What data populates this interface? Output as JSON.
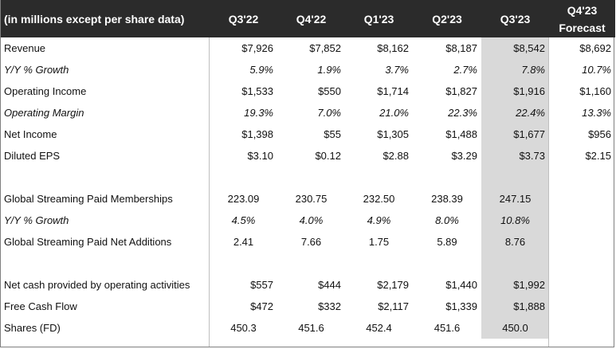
{
  "header": {
    "label": "(in millions except per share data)",
    "cols": [
      "Q3'22",
      "Q4'22",
      "Q1'23",
      "Q2'23",
      "Q3'23"
    ],
    "forecast_line1": "Q4'23",
    "forecast_line2": "Forecast"
  },
  "rows": [
    {
      "label": "Revenue",
      "italic": false,
      "values": [
        "$7,926",
        "$7,852",
        "$8,162",
        "$8,187",
        "$8,542",
        "$8,692"
      ]
    },
    {
      "label": "Y/Y % Growth",
      "italic": true,
      "values": [
        "5.9%",
        "1.9%",
        "3.7%",
        "2.7%",
        "7.8%",
        "10.7%"
      ]
    },
    {
      "label": "Operating Income",
      "italic": false,
      "values": [
        "$1,533",
        "$550",
        "$1,714",
        "$1,827",
        "$1,916",
        "$1,160"
      ]
    },
    {
      "label": "Operating Margin",
      "italic": true,
      "values": [
        "19.3%",
        "7.0%",
        "21.0%",
        "22.3%",
        "22.4%",
        "13.3%"
      ]
    },
    {
      "label": "Net Income",
      "italic": false,
      "values": [
        "$1,398",
        "$55",
        "$1,305",
        "$1,488",
        "$1,677",
        "$956"
      ]
    },
    {
      "label": "Diluted EPS",
      "italic": false,
      "values": [
        "$3.10",
        "$0.12",
        "$2.88",
        "$3.29",
        "$3.73",
        "$2.15"
      ]
    },
    {
      "gap": true
    },
    {
      "label": "Global Streaming Paid Memberships",
      "italic": false,
      "center": true,
      "values": [
        "223.09",
        "230.75",
        "232.50",
        "238.39",
        "247.15",
        ""
      ]
    },
    {
      "label": "Y/Y % Growth",
      "italic": true,
      "center": true,
      "values": [
        "4.5%",
        "4.0%",
        "4.9%",
        "8.0%",
        "10.8%",
        ""
      ]
    },
    {
      "label": "Global Streaming Paid Net Additions",
      "italic": false,
      "center": true,
      "values": [
        "2.41",
        "7.66",
        "1.75",
        "5.89",
        "8.76",
        ""
      ]
    },
    {
      "gap": true
    },
    {
      "label": "Net cash provided by operating activities",
      "italic": false,
      "values": [
        "$557",
        "$444",
        "$2,179",
        "$1,440",
        "$1,992",
        ""
      ]
    },
    {
      "label": "Free Cash Flow",
      "italic": false,
      "values": [
        "$472",
        "$332",
        "$2,117",
        "$1,339",
        "$1,888",
        ""
      ]
    },
    {
      "label": "Shares (FD)",
      "italic": false,
      "center": true,
      "values": [
        "450.3",
        "451.6",
        "452.4",
        "451.6",
        "450.0",
        ""
      ]
    }
  ],
  "colors": {
    "header_bg": "#2b2b2b",
    "header_text": "#ffffff",
    "highlight_column": "#d9d9d9"
  }
}
